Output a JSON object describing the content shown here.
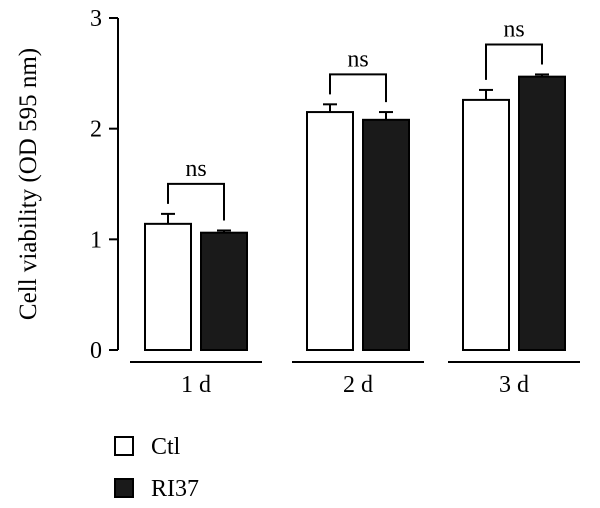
{
  "chart_data": {
    "type": "bar",
    "categories": [
      "1 d",
      "2 d",
      "3 d"
    ],
    "series": [
      {
        "name": "Ctl",
        "fill": "#ffffff",
        "values": [
          1.14,
          2.15,
          2.26
        ],
        "errors": [
          0.09,
          0.07,
          0.09
        ]
      },
      {
        "name": "RI37",
        "fill": "#1a1a1a",
        "values": [
          1.06,
          2.08,
          2.47
        ],
        "errors": [
          0.02,
          0.07,
          0.02
        ]
      }
    ],
    "annotations": [
      "ns",
      "ns",
      "ns"
    ],
    "ylabel": "Cell viability (OD 595 nm)",
    "xlabel": "",
    "title": "",
    "ylim": [
      0,
      3
    ],
    "yticks": [
      0,
      1,
      2,
      3
    ],
    "grid": false,
    "legend_position": "bottom-left"
  }
}
